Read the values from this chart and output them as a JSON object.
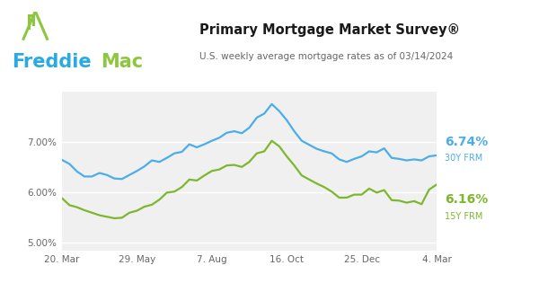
{
  "title": "Primary Mortgage Market Survey®",
  "subtitle": "U.S. weekly average mortgage rates as of 03/14/2024",
  "freddie_blue": "#29ABE2",
  "freddie_green": "#8DC63F",
  "line_blue": "#4BAEE8",
  "line_green": "#7DB72E",
  "bg_color": "#FFFFFF",
  "plot_bg": "#F0F0F0",
  "ylim": [
    4.85,
    8.0
  ],
  "yticks": [
    5.0,
    6.0,
    7.0
  ],
  "ytick_labels": [
    "5.00%",
    "6.00%",
    "7.00%"
  ],
  "xtick_labels": [
    "20. Mar",
    "29. May",
    "7. Aug",
    "16. Oct",
    "25. Dec",
    "4. Mar"
  ],
  "label_30y": "6.74%",
  "label_15y": "6.16%",
  "label_30y_sub": "30Y FRM",
  "label_15y_sub": "15Y FRM",
  "rate_30y": [
    6.65,
    6.57,
    6.42,
    6.32,
    6.32,
    6.39,
    6.35,
    6.28,
    6.27,
    6.35,
    6.43,
    6.52,
    6.64,
    6.61,
    6.69,
    6.78,
    6.81,
    6.96,
    6.9,
    6.96,
    7.03,
    7.09,
    7.19,
    7.22,
    7.18,
    7.29,
    7.49,
    7.57,
    7.76,
    7.62,
    7.44,
    7.22,
    7.03,
    6.95,
    6.87,
    6.82,
    6.78,
    6.66,
    6.61,
    6.67,
    6.72,
    6.82,
    6.8,
    6.88,
    6.69,
    6.67,
    6.64,
    6.66,
    6.64,
    6.72,
    6.74
  ],
  "rate_15y": [
    5.89,
    5.75,
    5.71,
    5.65,
    5.6,
    5.55,
    5.52,
    5.49,
    5.5,
    5.6,
    5.64,
    5.72,
    5.76,
    5.86,
    6.0,
    6.02,
    6.11,
    6.26,
    6.24,
    6.34,
    6.43,
    6.46,
    6.54,
    6.55,
    6.51,
    6.61,
    6.78,
    6.82,
    7.03,
    6.92,
    6.72,
    6.54,
    6.34,
    6.26,
    6.18,
    6.11,
    6.02,
    5.9,
    5.9,
    5.96,
    5.96,
    6.08,
    6.0,
    6.05,
    5.85,
    5.84,
    5.8,
    5.83,
    5.77,
    6.06,
    6.16
  ]
}
